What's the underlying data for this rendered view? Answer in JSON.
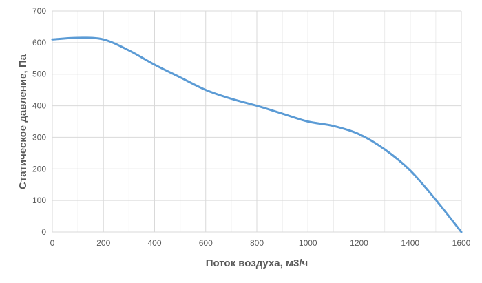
{
  "chart_data": {
    "type": "line",
    "title": "",
    "xlabel": "Поток воздуха, м3/ч",
    "ylabel": "Статическое давление, Па",
    "xlim": [
      0,
      1600
    ],
    "ylim": [
      0,
      700
    ],
    "xticks": [
      0,
      200,
      400,
      600,
      800,
      1000,
      1200,
      1400,
      1600
    ],
    "yticks": [
      0,
      100,
      200,
      300,
      400,
      500,
      600,
      700
    ],
    "grid": true,
    "line_color": "#5b9bd5",
    "series": [
      {
        "x": [
          0,
          100,
          200,
          300,
          400,
          500,
          600,
          700,
          800,
          900,
          1000,
          1100,
          1200,
          1300,
          1400,
          1500,
          1600
        ],
        "y": [
          610,
          615,
          610,
          575,
          530,
          490,
          450,
          422,
          400,
          375,
          350,
          336,
          310,
          262,
          195,
          102,
          0
        ]
      }
    ]
  }
}
